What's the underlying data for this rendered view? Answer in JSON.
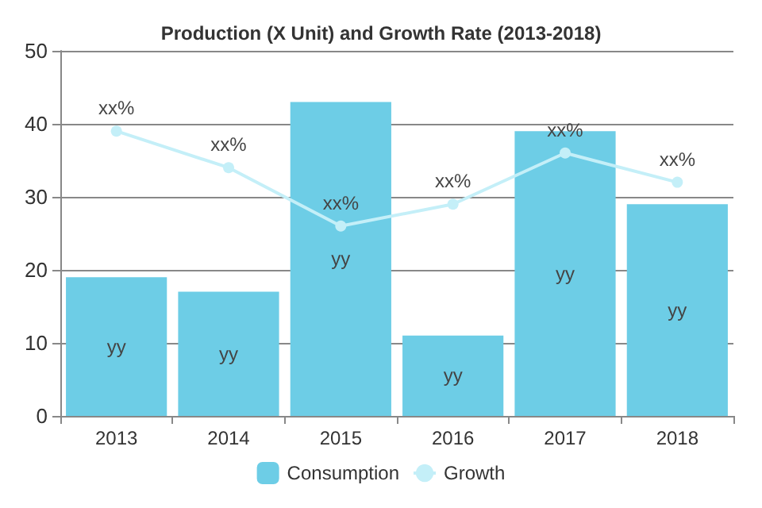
{
  "chart_data": {
    "type": "bar",
    "title": "Production (X Unit) and Growth Rate (2013-2018)",
    "categories": [
      "2013",
      "2014",
      "2015",
      "2016",
      "2017",
      "2018"
    ],
    "series": [
      {
        "name": "Consumption",
        "color": "#6dcde6",
        "values": [
          19,
          17,
          43,
          11,
          39,
          29
        ],
        "value_labels": [
          "yy",
          "yy",
          "yy",
          "yy",
          "yy",
          "yy"
        ]
      },
      {
        "name": "Growth",
        "type": "line",
        "color": "#c4eff8",
        "marker": "circle",
        "values": [
          39,
          34,
          26,
          29,
          36,
          32
        ],
        "value_labels": [
          "xx%",
          "xx%",
          "xx%",
          "xx%",
          "xx%",
          "xx%"
        ]
      }
    ],
    "ylim": [
      0,
      50
    ],
    "yticks": [
      0,
      10,
      20,
      30,
      40,
      50
    ],
    "grid": "y",
    "legend": "bottom"
  }
}
